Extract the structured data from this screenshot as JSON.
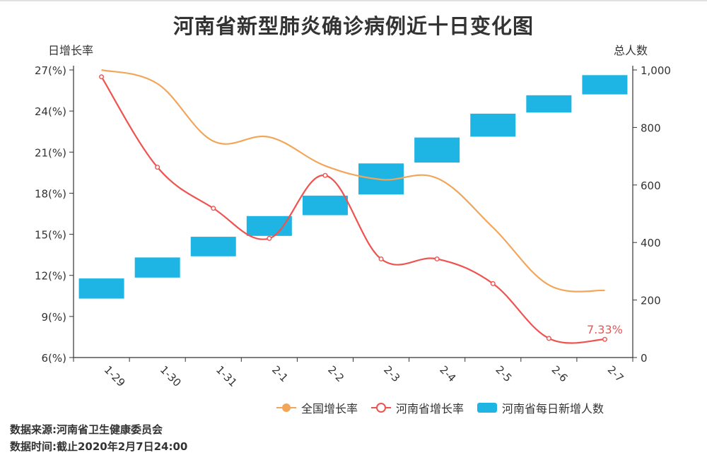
{
  "title": "河南省新型肺炎确诊病例近十日变化图",
  "left_axis_name": "日增长率",
  "right_axis_name": "总人数",
  "legend": {
    "national": "全国增长率",
    "henan": "河南省增长率",
    "new_cases": "河南省每日新增人数"
  },
  "footer": {
    "source": "数据来源:河南省卫生健康委员会",
    "time": "数据时间:截止2020年2月7日24:00"
  },
  "colors": {
    "national": "#f2a65a",
    "henan": "#ef5350",
    "bars": "#1eb5e5",
    "axis": "#333333",
    "text": "#333333"
  },
  "chart_data": {
    "type": "line+bar",
    "categories": [
      "1-29",
      "1-30",
      "1-31",
      "2-1",
      "2-2",
      "2-3",
      "2-4",
      "2-5",
      "2-6",
      "2-7"
    ],
    "y_left": {
      "min": 6,
      "max": 27,
      "ticks": [
        6,
        9,
        12,
        15,
        18,
        21,
        24,
        27
      ],
      "tick_labels": [
        "6(%)",
        "9(%)",
        "12(%)",
        "15(%)",
        "18(%)",
        "21(%)",
        "24(%)",
        "27(%)"
      ]
    },
    "y_right": {
      "min": 0,
      "max": 1000,
      "ticks": [
        0,
        200,
        400,
        600,
        800,
        1000
      ],
      "tick_labels": [
        "0",
        "200",
        "400",
        "600",
        "800",
        "1,000"
      ]
    },
    "series": [
      {
        "name": "全国增长率",
        "type": "line",
        "axis": "left",
        "values": [
          27.0,
          26.0,
          21.8,
          22.1,
          20.0,
          19.0,
          19.1,
          15.5,
          11.3,
          10.9
        ]
      },
      {
        "name": "河南省增长率",
        "type": "line",
        "axis": "left",
        "values": [
          26.5,
          19.9,
          16.9,
          14.7,
          19.3,
          13.2,
          13.2,
          11.4,
          7.4,
          7.33
        ],
        "last_label": "7.33%"
      },
      {
        "name": "河南省每日新增人数",
        "type": "floating-bar",
        "axis": "right",
        "ranges": [
          [
            205,
            275
          ],
          [
            278,
            348
          ],
          [
            352,
            420
          ],
          [
            423,
            492
          ],
          [
            495,
            563
          ],
          [
            567,
            675
          ],
          [
            678,
            765
          ],
          [
            768,
            848
          ],
          [
            852,
            912
          ],
          [
            915,
            982
          ]
        ]
      }
    ],
    "grid": false,
    "legend_position": "bottom-right"
  }
}
